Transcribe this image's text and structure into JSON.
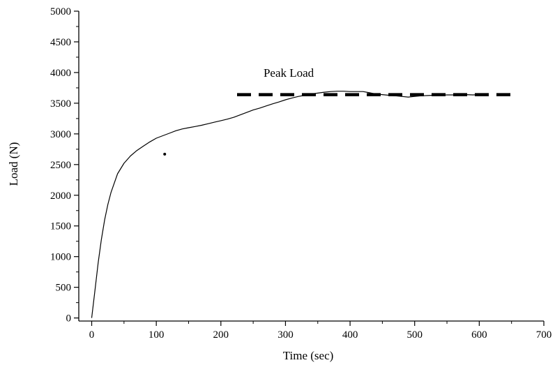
{
  "chart_data": {
    "type": "line",
    "title": "",
    "xlabel": "Time (sec)",
    "ylabel": "Load (N)",
    "xlim": [
      -20,
      700
    ],
    "ylim": [
      -50,
      5000
    ],
    "x_ticks": [
      0,
      100,
      200,
      300,
      400,
      500,
      600,
      700
    ],
    "y_ticks": [
      0,
      500,
      1000,
      1500,
      2000,
      2500,
      3000,
      3500,
      4000,
      4500,
      5000
    ],
    "x_minor_step": 50,
    "y_minor_step": 250,
    "grid": false,
    "legend": "none",
    "colors": {
      "line": "#000000",
      "axis": "#000000",
      "background": "#ffffff"
    },
    "series": [
      {
        "style": "solid",
        "x": [
          0,
          5,
          10,
          15,
          20,
          25,
          30,
          40,
          50,
          60,
          70,
          80,
          90,
          100,
          110,
          120,
          130,
          140,
          150,
          160,
          170,
          180,
          190,
          200,
          210,
          220,
          230,
          240,
          250,
          260,
          270,
          280,
          290,
          300,
          310,
          320,
          330,
          340,
          350,
          360,
          370,
          380,
          390,
          400,
          410,
          420,
          430,
          440,
          450,
          460,
          470,
          480,
          490,
          500,
          510,
          520,
          530,
          540,
          550,
          560,
          570,
          580,
          590,
          600,
          610
        ],
        "y": [
          0,
          450,
          900,
          1280,
          1600,
          1850,
          2050,
          2350,
          2520,
          2640,
          2730,
          2800,
          2870,
          2930,
          2970,
          3010,
          3050,
          3080,
          3100,
          3120,
          3140,
          3165,
          3190,
          3215,
          3240,
          3270,
          3310,
          3350,
          3390,
          3420,
          3455,
          3490,
          3520,
          3555,
          3585,
          3610,
          3630,
          3650,
          3665,
          3680,
          3690,
          3695,
          3695,
          3690,
          3690,
          3690,
          3670,
          3650,
          3640,
          3630,
          3620,
          3610,
          3600,
          3610,
          3620,
          3625,
          3630,
          3630,
          3635,
          3635,
          3640,
          3640,
          3635,
          3640,
          3645
        ]
      },
      {
        "style": "dashed",
        "x": [
          225,
          650
        ],
        "y": [
          3640,
          3640
        ]
      }
    ],
    "markers": [
      {
        "x": 113,
        "y": 2670
      }
    ],
    "annotations": [
      {
        "text": "Peak Load",
        "x": 305,
        "y": 3930
      }
    ]
  }
}
